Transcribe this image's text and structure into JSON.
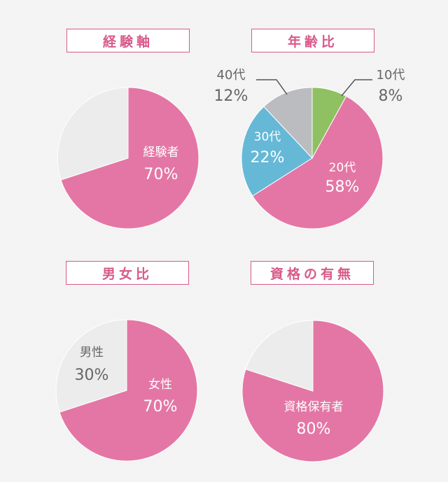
{
  "titles": {
    "experience": "経験軸",
    "age": "年齢比",
    "gender": "男女比",
    "qualification": "資格の有無"
  },
  "chart_data": [
    {
      "type": "pie",
      "title": "経験軸",
      "slices": [
        {
          "label": "経験者",
          "value": 70,
          "display": "70%",
          "color": "#e476a5"
        },
        {
          "label": "",
          "value": 30,
          "display": "",
          "color": "#ececec"
        }
      ]
    },
    {
      "type": "pie",
      "title": "年齢比",
      "slices": [
        {
          "label": "10代",
          "value": 8,
          "display": "8%",
          "color": "#8fc061"
        },
        {
          "label": "20代",
          "value": 58,
          "display": "58%",
          "color": "#e476a5"
        },
        {
          "label": "30代",
          "value": 22,
          "display": "22%",
          "color": "#66b8d7"
        },
        {
          "label": "40代",
          "value": 12,
          "display": "12%",
          "color": "#bbbcbf"
        }
      ]
    },
    {
      "type": "pie",
      "title": "男女比",
      "slices": [
        {
          "label": "女性",
          "value": 70,
          "display": "70%",
          "color": "#e476a5"
        },
        {
          "label": "男性",
          "value": 30,
          "display": "30%",
          "color": "#ececec"
        }
      ]
    },
    {
      "type": "pie",
      "title": "資格の有無",
      "slices": [
        {
          "label": "資格保有者",
          "value": 80,
          "display": "80%",
          "color": "#e476a5"
        },
        {
          "label": "",
          "value": 20,
          "display": "",
          "color": "#ececec"
        }
      ]
    }
  ]
}
